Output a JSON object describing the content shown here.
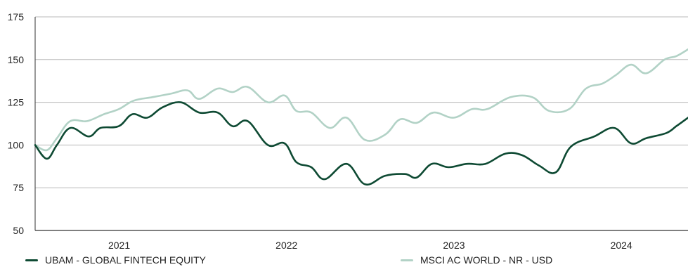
{
  "chart_data": {
    "type": "line",
    "title": "",
    "xlabel": "",
    "ylabel": "",
    "ylim": [
      50,
      175
    ],
    "yticks": [
      50,
      75,
      100,
      125,
      150,
      175
    ],
    "xlim": [
      2020.75,
      2024.65
    ],
    "xticks": [
      {
        "label": "2021",
        "value": 2021.0
      },
      {
        "label": "2022",
        "value": 2022.0
      },
      {
        "label": "2023",
        "value": 2023.0
      },
      {
        "label": "2024",
        "value": 2024.0
      }
    ],
    "grid": "horizontal",
    "legend_position": "bottom",
    "series": [
      {
        "name": "UBAM - GLOBAL FINTECH EQUITY",
        "color": "#0e4a33",
        "x": [
          2020.75,
          2020.82,
          2020.88,
          2020.96,
          2021.07,
          2021.14,
          2021.25,
          2021.33,
          2021.42,
          2021.51,
          2021.62,
          2021.73,
          2021.84,
          2021.93,
          2022.02,
          2022.14,
          2022.24,
          2022.31,
          2022.4,
          2022.48,
          2022.61,
          2022.72,
          2022.84,
          2022.96,
          2023.03,
          2023.12,
          2023.22,
          2023.33,
          2023.44,
          2023.56,
          2023.66,
          2023.76,
          2023.86,
          2023.95,
          2024.09,
          2024.21,
          2024.31,
          2024.4,
          2024.52,
          2024.58,
          2024.65
        ],
        "y": [
          100,
          92,
          100,
          110,
          105,
          110,
          111,
          118,
          116,
          122,
          125,
          119,
          119,
          111,
          114,
          100,
          101,
          90,
          87,
          80,
          89,
          77,
          82,
          83,
          81,
          89,
          87,
          89,
          89,
          95,
          94,
          88,
          84,
          99,
          105,
          110,
          101,
          104,
          107,
          111,
          116
        ]
      },
      {
        "name": "MSCI AC WORLD - NR - USD",
        "color": "#b2d2c6",
        "x": [
          2020.75,
          2020.82,
          2020.88,
          2020.96,
          2021.06,
          2021.16,
          2021.25,
          2021.34,
          2021.45,
          2021.56,
          2021.66,
          2021.73,
          2021.84,
          2021.93,
          2022.02,
          2022.14,
          2022.24,
          2022.31,
          2022.4,
          2022.51,
          2022.61,
          2022.72,
          2022.84,
          2022.93,
          2023.03,
          2023.13,
          2023.25,
          2023.36,
          2023.45,
          2023.59,
          2023.72,
          2023.82,
          2023.94,
          2024.04,
          2024.14,
          2024.22,
          2024.31,
          2024.4,
          2024.51,
          2024.58,
          2024.65
        ],
        "y": [
          100,
          97,
          104,
          114,
          114,
          118,
          121,
          126,
          128,
          130,
          132,
          127,
          133,
          131,
          134,
          125,
          129,
          120,
          119,
          110,
          116,
          103,
          106,
          115,
          113,
          119,
          116,
          121,
          121,
          128,
          128,
          120,
          121,
          133,
          136,
          141,
          147,
          142,
          150,
          152,
          156
        ]
      }
    ]
  }
}
